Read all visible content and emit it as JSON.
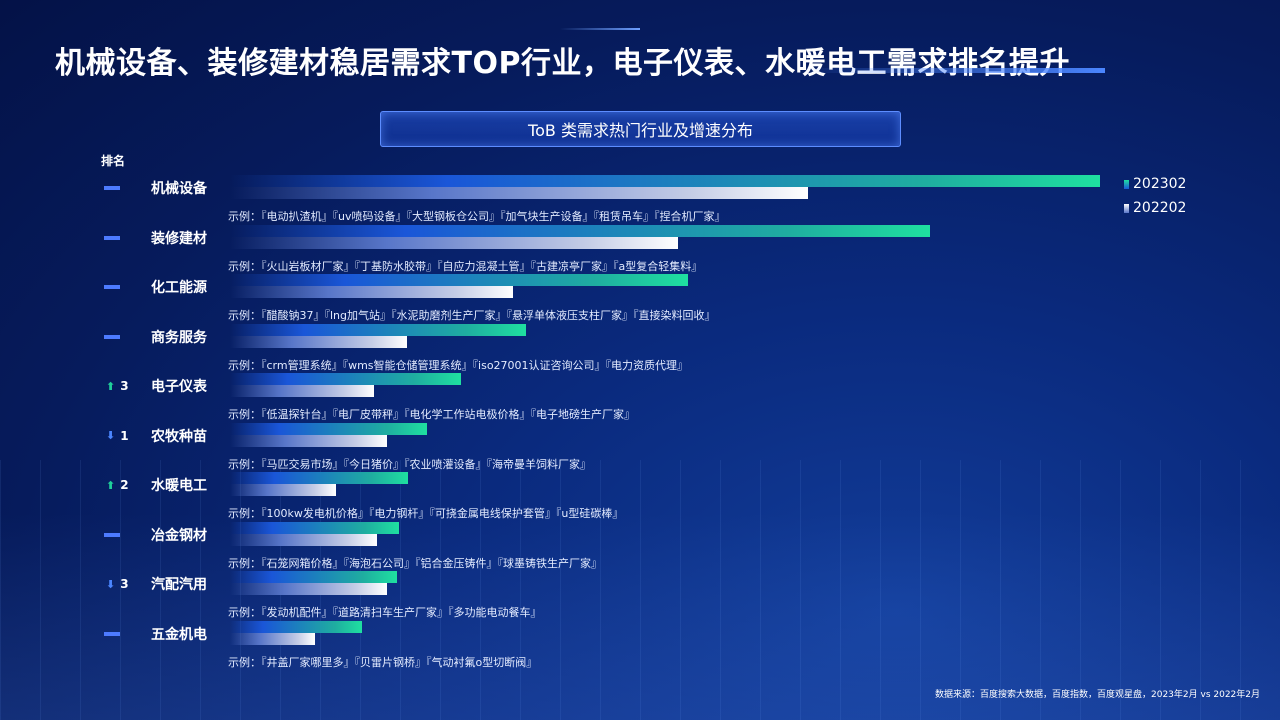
{
  "title": "机械设备、装修建材稳居需求TOP行业，电子仪表、水暖电工需求排名提升",
  "subtitle": "ToB 类需求热门行业及增速分布",
  "rank_header": "排名",
  "source": "数据来源：百度搜索大数据，百度指数，百度观星盘，2023年2月 vs 2022年2月",
  "colors": {
    "series_2023": "#1fe0a0",
    "series_2022": "#ffffff",
    "rank_marker": "#4d7bff",
    "up": "#1fcf9a",
    "down": "#4b86ff"
  },
  "rows": [
    {
      "industry": "机械设备",
      "rank_change": {
        "dir": "none",
        "value": ""
      },
      "example": "示例：『电动扒渣机』『uv喷码设备』『大型钢板仓公司』『加气块生产设备』『租赁吊车』『捏合机厂家』"
    },
    {
      "industry": "装修建材",
      "rank_change": {
        "dir": "none",
        "value": ""
      },
      "example": "示例：『火山岩板材厂家』『丁基防水胶带』『自应力混凝土管』『古建凉亭厂家』『a型复合轻集料』"
    },
    {
      "industry": "化工能源",
      "rank_change": {
        "dir": "none",
        "value": ""
      },
      "example": "示例：『醋酸钠37』『lng加气站』『水泥助磨剂生产厂家』『悬浮单体液压支柱厂家』『直接染料回收』"
    },
    {
      "industry": "商务服务",
      "rank_change": {
        "dir": "none",
        "value": ""
      },
      "example": "示例：『crm管理系统』『wms智能仓储管理系统』『iso27001认证咨询公司』『电力资质代理』"
    },
    {
      "industry": "电子仪表",
      "rank_change": {
        "dir": "up",
        "value": "3"
      },
      "example": "示例：『低温探针台』『电厂皮带秤』『电化学工作站电极价格』『电子地磅生产厂家』"
    },
    {
      "industry": "农牧种苗",
      "rank_change": {
        "dir": "down",
        "value": "1"
      },
      "example": "示例：『马匹交易市场』『今日猪价』『农业喷灌设备』『海帝曼羊饲料厂家』"
    },
    {
      "industry": "水暖电工",
      "rank_change": {
        "dir": "up",
        "value": "2"
      },
      "example": "示例：『100kw发电机价格』『电力钢杆』『可挠金属电线保护套管』『u型硅碳棒』"
    },
    {
      "industry": "冶金钢材",
      "rank_change": {
        "dir": "none",
        "value": ""
      },
      "example": "示例：『石笼网箱价格』『海泡石公司』『铝合金压铸件』『球墨铸铁生产厂家』"
    },
    {
      "industry": "汽配汽用",
      "rank_change": {
        "dir": "down",
        "value": "3"
      },
      "example": "示例：『发动机配件』『道路清扫车生产厂家』『多功能电动餐车』"
    },
    {
      "industry": "五金机电",
      "rank_change": {
        "dir": "none",
        "value": ""
      },
      "example": "示例：『井盖厂家哪里多』『贝雷片钢桥』『气动衬氟o型切断阀』"
    }
  ],
  "chart_data": {
    "type": "bar",
    "orientation": "horizontal",
    "title": "ToB 类需求热门行业及增速分布",
    "categories": [
      "机械设备",
      "装修建材",
      "化工能源",
      "商务服务",
      "电子仪表",
      "农牧种苗",
      "水暖电工",
      "冶金钢材",
      "汽配汽用",
      "五金机电"
    ],
    "series": [
      {
        "name": "202302",
        "values": [
          100,
          80.5,
          52.6,
          34.0,
          26.6,
          22.6,
          20.5,
          19.4,
          19.2,
          15.2
        ]
      },
      {
        "name": "202202",
        "values": [
          66.4,
          51.5,
          32.5,
          20.3,
          16.6,
          18.0,
          12.2,
          16.9,
          18.0,
          9.8
        ]
      }
    ],
    "xlim": [
      0,
      100
    ],
    "grid": false,
    "legend": {
      "position": "top-right",
      "items": [
        "202302",
        "202202"
      ]
    }
  }
}
